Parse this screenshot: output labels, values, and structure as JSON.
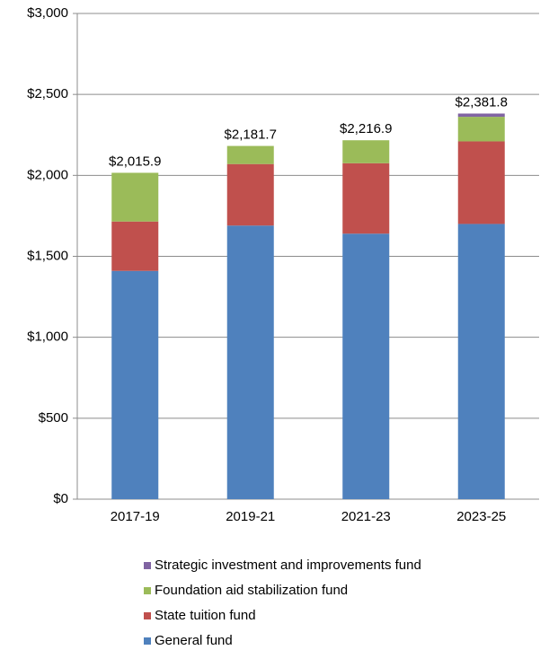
{
  "chart_data": {
    "type": "stacked_bar",
    "categories": [
      "2017-19",
      "2019-21",
      "2021-23",
      "2023-25"
    ],
    "series": [
      {
        "name": "General fund",
        "color": "#4f81bd",
        "values": [
          1410,
          1690,
          1640,
          1700
        ]
      },
      {
        "name": "State tuition fund",
        "color": "#c0504d",
        "values": [
          305,
          380,
          435,
          510
        ]
      },
      {
        "name": "Foundation aid stabilization fund",
        "color": "#9bbb59",
        "values": [
          300.9,
          111.7,
          141.9,
          151.8
        ]
      },
      {
        "name": "Strategic investment and improvements fund",
        "color": "#8064a2",
        "values": [
          0,
          0,
          0,
          20
        ]
      }
    ],
    "totals": [
      2015.9,
      2181.7,
      2216.9,
      2381.8
    ],
    "total_labels": [
      "$2,015.9",
      "$2,181.7",
      "$2,216.9",
      "$2,381.8"
    ],
    "ylim": [
      0,
      3000
    ],
    "yticks": [
      {
        "value": 0,
        "label": "$0"
      },
      {
        "value": 500,
        "label": "$500"
      },
      {
        "value": 1000,
        "label": "$1,000"
      },
      {
        "value": 1500,
        "label": "$1,500"
      },
      {
        "value": 2000,
        "label": "$2,000"
      },
      {
        "value": 2500,
        "label": "$2,500"
      },
      {
        "value": 3000,
        "label": "$3,000"
      }
    ],
    "grid": true,
    "legend": "bottom"
  }
}
